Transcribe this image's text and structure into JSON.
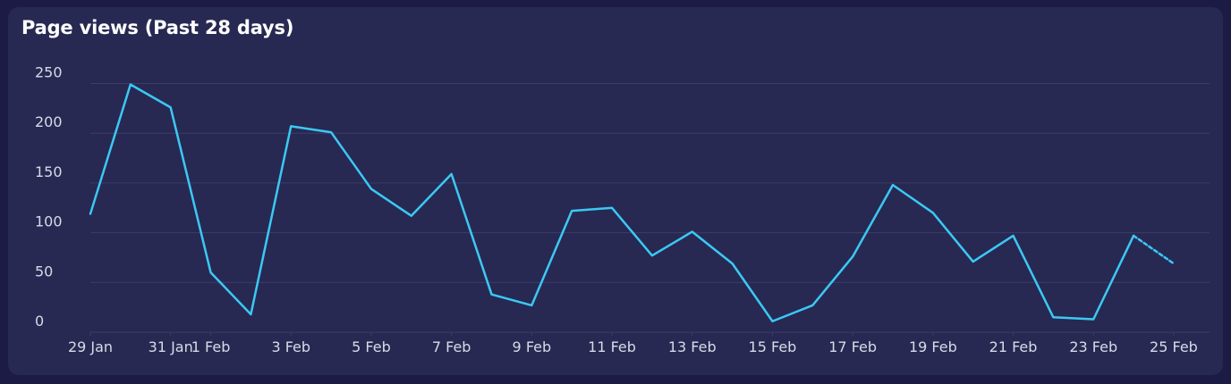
{
  "card": {
    "title": "Page views (Past 28 days)"
  },
  "colors": {
    "background": "#1c1b45",
    "card": "#272952",
    "line": "#3cc8f4",
    "grid": "#3a3d6a",
    "text": "#ffffff",
    "tick_text": "#d8dae8"
  },
  "chart_data": {
    "type": "line",
    "title": "Page views (Past 28 days)",
    "xlabel": "",
    "ylabel": "",
    "x": [
      "29 Jan",
      "30 Jan",
      "31 Jan",
      "1 Feb",
      "2 Feb",
      "3 Feb",
      "4 Feb",
      "5 Feb",
      "6 Feb",
      "7 Feb",
      "8 Feb",
      "9 Feb",
      "10 Feb",
      "11 Feb",
      "12 Feb",
      "13 Feb",
      "14 Feb",
      "15 Feb",
      "16 Feb",
      "17 Feb",
      "18 Feb",
      "19 Feb",
      "20 Feb",
      "21 Feb",
      "22 Feb",
      "23 Feb",
      "24 Feb",
      "25 Feb"
    ],
    "x_tick_labels": [
      "29 Jan",
      "31 Jan",
      "1 Feb",
      "3 Feb",
      "5 Feb",
      "7 Feb",
      "9 Feb",
      "11 Feb",
      "13 Feb",
      "15 Feb",
      "17 Feb",
      "19 Feb",
      "21 Feb",
      "23 Feb",
      "25 Feb"
    ],
    "y_ticks": [
      0,
      50,
      100,
      150,
      200,
      250
    ],
    "ylim": [
      0,
      250
    ],
    "series": [
      {
        "values": [
          119,
          249,
          226,
          60,
          18,
          207,
          201,
          144,
          117,
          159,
          38,
          27,
          122,
          125,
          77,
          101,
          69,
          11,
          27,
          76,
          148,
          120,
          71,
          97,
          15,
          13,
          97,
          69
        ],
        "incomplete_last_segment": true
      }
    ],
    "grid": true,
    "legend": "none"
  }
}
